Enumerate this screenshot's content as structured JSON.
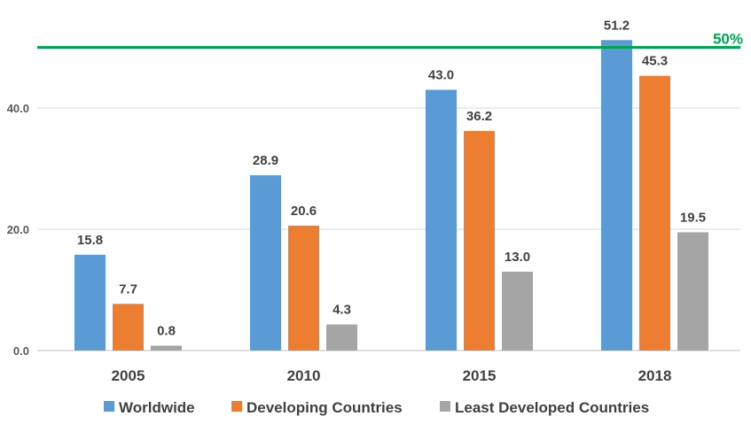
{
  "chart_data": {
    "type": "bar",
    "categories": [
      "2005",
      "2010",
      "2015",
      "2018"
    ],
    "series": [
      {
        "name": "Worldwide",
        "color": "#5B9BD5",
        "values": [
          15.8,
          28.9,
          43.0,
          51.2
        ]
      },
      {
        "name": "Developing Countries",
        "color": "#ED7D31",
        "values": [
          7.7,
          20.6,
          36.2,
          45.3
        ]
      },
      {
        "name": "Least Developed Countries",
        "color": "#A5A5A5",
        "values": [
          0.8,
          4.3,
          13.0,
          19.5
        ]
      }
    ],
    "data_labels": [
      [
        "15.8",
        "7.7",
        "0.8"
      ],
      [
        "28.9",
        "20.6",
        "4.3"
      ],
      [
        "43.0",
        "36.2",
        "13.0"
      ],
      [
        "51.2",
        "45.3",
        "19.5"
      ]
    ],
    "yticks": [
      0,
      20,
      40
    ],
    "ytick_labels": [
      "0.0",
      "20.0",
      "40.0"
    ],
    "ylim": [
      0,
      55
    ],
    "grid": true,
    "reference_line": {
      "value": 50,
      "label": "50%",
      "color": "#00A550"
    },
    "legend_position": "bottom",
    "title": "",
    "xlabel": "",
    "ylabel": ""
  }
}
